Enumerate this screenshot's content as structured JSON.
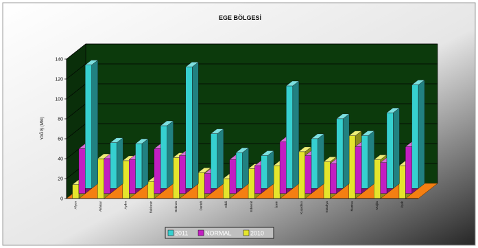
{
  "chart_data": {
    "type": "bar",
    "title": "EGE BÖLGESİ",
    "ylabel": "YAĞIŞ (MM)",
    "xlabel": "",
    "ylim": [
      0,
      140
    ],
    "yticks": [
      0,
      20,
      40,
      60,
      80,
      100,
      120,
      140
    ],
    "grid": true,
    "legend_position": "bottom-center",
    "categories": [
      "Afyon",
      "Akhisar",
      "Aydın",
      "Balıkesir",
      "Bodrum",
      "Denizli",
      "Dikili",
      "Edremit",
      "İzmir",
      "Kuşadası",
      "Kütahya",
      "Manisa",
      "Muğla",
      "Uşak"
    ],
    "series": [
      {
        "name": "2011",
        "color": "#36d0d0",
        "values": [
          124,
          46,
          45,
          63,
          122,
          55,
          36,
          33,
          103,
          50,
          70,
          53,
          76,
          104
        ]
      },
      {
        "name": "NORMAL",
        "color": "#c21ec2",
        "values": [
          45,
          35,
          34,
          45,
          38,
          20,
          34,
          28,
          52,
          38,
          30,
          47,
          31,
          47
        ]
      },
      {
        "name": "2010",
        "color": "#e5e52c",
        "values": [
          14,
          40,
          38,
          17,
          41,
          26,
          20,
          30,
          33,
          47,
          37,
          63,
          39,
          33
        ]
      }
    ]
  }
}
